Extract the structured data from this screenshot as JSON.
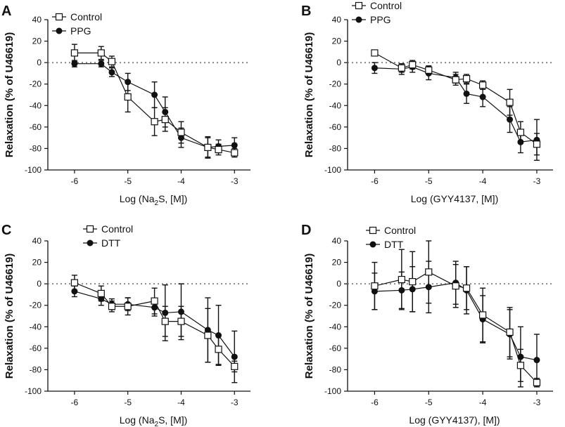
{
  "chart_data": [
    {
      "type": "line",
      "panel": "A",
      "xlabel": "Log (Na2S, [M])",
      "xlabel_parts": [
        "Log (Na",
        "2",
        "S, [M])"
      ],
      "ylabel": "Relaxation (% of U46619)",
      "xlim": [
        -6.5,
        -2.7
      ],
      "ylim": [
        -100,
        40
      ],
      "xticks": [
        -6,
        -5,
        -4,
        -3
      ],
      "xtick_labels": [
        "-6",
        "-5",
        "-4",
        "-3"
      ],
      "yticks": [
        40,
        20,
        0,
        -20,
        -40,
        -60,
        -80,
        -100
      ],
      "ytick_labels": [
        "40",
        "20",
        "0",
        "-20",
        "-40",
        "-60",
        "-80",
        "-100"
      ],
      "legend_position": "top-left",
      "series": [
        {
          "name": "Control",
          "marker": "open-square",
          "x": [
            -6,
            -5.5,
            -5.3,
            -5,
            -4.5,
            -4.3,
            -4,
            -3.5,
            -3.3,
            -3
          ],
          "y": [
            9,
            9,
            1,
            -32,
            -55,
            -53,
            -65,
            -79,
            -81,
            -84
          ],
          "err": [
            8,
            6,
            5,
            14,
            13,
            11,
            10,
            9,
            5,
            4
          ]
        },
        {
          "name": "PPG",
          "marker": "filled-circle",
          "x": [
            -6,
            -5.5,
            -5.3,
            -5,
            -4.5,
            -4.3,
            -4,
            -3.5,
            -3.3,
            -3
          ],
          "y": [
            -1,
            -1,
            -9,
            -18,
            -30,
            -46,
            -70,
            -79,
            -78,
            -77
          ],
          "err": [
            3,
            3,
            4,
            8,
            12,
            14,
            9,
            10,
            6,
            7
          ]
        }
      ]
    },
    {
      "type": "line",
      "panel": "B",
      "xlabel": "Log (GYY4137, [M])",
      "ylabel": "Relaxation (% of U46619)",
      "xlim": [
        -6.5,
        -2.7
      ],
      "ylim": [
        -100,
        40
      ],
      "xticks": [
        -6,
        -5,
        -4,
        -3
      ],
      "xtick_labels": [
        "-6",
        "-5",
        "-4",
        "-3"
      ],
      "yticks": [
        40,
        20,
        0,
        -20,
        -40,
        -60,
        -80,
        -100
      ],
      "ytick_labels": [
        "40",
        "20",
        "0",
        "-20",
        "-40",
        "-60",
        "-80",
        "-100"
      ],
      "legend_position": "top-left",
      "series": [
        {
          "name": "Control",
          "marker": "open-square",
          "x": [
            -6,
            -5.5,
            -5.3,
            -5,
            -4.5,
            -4.3,
            -4,
            -3.5,
            -3.3,
            -3
          ],
          "y": [
            9,
            -5,
            -2,
            -7,
            -16,
            -15,
            -21,
            -37,
            -65,
            -76
          ],
          "err": [
            2,
            4,
            4,
            4,
            5,
            4,
            4,
            12,
            10,
            10
          ]
        },
        {
          "name": "PPG",
          "marker": "filled-circle",
          "x": [
            -6,
            -5.5,
            -5.3,
            -5,
            -4.5,
            -4.3,
            -4,
            -3.5,
            -3.3,
            -3
          ],
          "y": [
            -5,
            -6,
            -4,
            -10,
            -14,
            -29,
            -32,
            -53,
            -74,
            -72
          ],
          "err": [
            5,
            5,
            5,
            6,
            5,
            9,
            9,
            12,
            10,
            19
          ]
        }
      ]
    },
    {
      "type": "line",
      "panel": "C",
      "xlabel": "Log (Na2S, [M])",
      "xlabel_parts": [
        "Log (Na",
        "2",
        "S, [M])"
      ],
      "ylabel": "Relaxation (% of U46619)",
      "xlim": [
        -6.5,
        -2.7
      ],
      "ylim": [
        -100,
        40
      ],
      "xticks": [
        -6,
        -5,
        -4,
        -3
      ],
      "xtick_labels": [
        "-6",
        "-5",
        "-4",
        "-3"
      ],
      "yticks": [
        40,
        20,
        0,
        -20,
        -40,
        -60,
        -80,
        -100
      ],
      "ytick_labels": [
        "40",
        "20",
        "0",
        "-20",
        "-40",
        "-60",
        "-80",
        "-100"
      ],
      "legend_position": "top-left",
      "series": [
        {
          "name": "Control",
          "marker": "open-square",
          "x": [
            -6,
            -5.5,
            -5.3,
            -5,
            -4.5,
            -4.3,
            -4,
            -3.5,
            -3.3,
            -3
          ],
          "y": [
            1,
            -9,
            -21,
            -21,
            -16,
            -35,
            -35,
            -48,
            -61,
            -77
          ],
          "err": [
            7,
            7,
            5,
            8,
            12,
            14,
            14,
            25,
            14,
            5
          ]
        },
        {
          "name": "DTT",
          "marker": "filled-circle",
          "x": [
            -6,
            -5.5,
            -5.3,
            -5,
            -4.5,
            -4.3,
            -4,
            -3.5,
            -3.3,
            -3
          ],
          "y": [
            -7,
            -14,
            -19,
            -19,
            -22,
            -27,
            -26,
            -43,
            -48,
            -68
          ],
          "err": [
            5,
            6,
            5,
            6,
            8,
            26,
            26,
            30,
            28,
            24
          ]
        }
      ]
    },
    {
      "type": "line",
      "panel": "D",
      "xlabel": "Log (GYY4137), [M])",
      "ylabel": "Relaxation (% of U46619)",
      "xlim": [
        -6.5,
        -2.7
      ],
      "ylim": [
        -100,
        40
      ],
      "xticks": [
        -6,
        -5,
        -4,
        -3
      ],
      "xtick_labels": [
        "-6",
        "-5",
        "-4",
        "-3"
      ],
      "yticks": [
        40,
        20,
        0,
        -20,
        -40,
        -60,
        -80,
        -100
      ],
      "ytick_labels": [
        "40",
        "20",
        "0",
        "-20",
        "-40",
        "-60",
        "-80",
        "-100"
      ],
      "legend_position": "top-left",
      "series": [
        {
          "name": "Control",
          "marker": "open-square",
          "x": [
            -6,
            -5.5,
            -5.3,
            -5,
            -4.5,
            -4.3,
            -4,
            -3.5,
            -3.3,
            -3
          ],
          "y": [
            -2,
            4,
            2,
            11,
            -2,
            -4,
            -29,
            -45,
            -76,
            -92
          ],
          "err": [
            22,
            28,
            28,
            29,
            20,
            20,
            25,
            23,
            15,
            4
          ]
        },
        {
          "name": "DTT",
          "marker": "filled-circle",
          "x": [
            -6,
            -5.5,
            -5.3,
            -5,
            -4.5,
            -4.3,
            -4,
            -3.5,
            -3.3,
            -3
          ],
          "y": [
            -7,
            -6,
            -5,
            -3,
            1,
            -6,
            -33,
            -47,
            -68,
            -71
          ],
          "err": [
            17,
            17,
            21,
            24,
            20,
            22,
            22,
            23,
            28,
            24
          ]
        }
      ]
    }
  ]
}
